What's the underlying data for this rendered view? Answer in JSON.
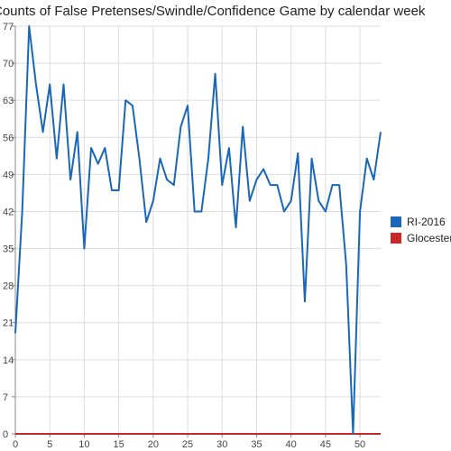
{
  "chart_data": {
    "type": "line",
    "title": "Counts of False Pretenses/Swindle/Confidence Game by calendar week",
    "xlabel": "",
    "ylabel": "",
    "xlim": [
      0,
      53
    ],
    "ylim": [
      0,
      77
    ],
    "x_ticks": [
      0,
      5,
      10,
      15,
      20,
      25,
      30,
      35,
      40,
      45,
      50
    ],
    "y_ticks": [
      0,
      7,
      14,
      21,
      28,
      35,
      42,
      49,
      56,
      63,
      70,
      77
    ],
    "grid": true,
    "legend_position": "right",
    "x": [
      0,
      1,
      2,
      3,
      4,
      5,
      6,
      7,
      8,
      9,
      10,
      11,
      12,
      13,
      14,
      15,
      16,
      17,
      18,
      19,
      20,
      21,
      22,
      23,
      24,
      25,
      26,
      27,
      28,
      29,
      30,
      31,
      32,
      33,
      34,
      35,
      36,
      37,
      38,
      39,
      40,
      41,
      42,
      43,
      44,
      45,
      46,
      47,
      48,
      49,
      50,
      51,
      52,
      53
    ],
    "series": [
      {
        "name": "RI-2016",
        "color": "#1a66b8",
        "values": [
          19,
          42,
          77,
          66,
          57,
          66,
          52,
          66,
          48,
          57,
          35,
          54,
          51,
          54,
          46,
          46,
          63,
          62,
          52,
          40,
          44,
          52,
          48,
          47,
          58,
          62,
          42,
          42,
          52,
          68,
          47,
          54,
          39,
          58,
          44,
          48,
          50,
          47,
          47,
          42,
          44,
          53,
          25,
          52,
          44,
          42,
          47,
          47,
          32,
          0,
          42,
          52,
          48,
          57
        ]
      },
      {
        "name": "Glocester",
        "color": "#c62828",
        "values": [
          0,
          0,
          0,
          0,
          0,
          0,
          0,
          0,
          0,
          0,
          0,
          0,
          0,
          0,
          0,
          0,
          0,
          0,
          0,
          0,
          0,
          0,
          0,
          0,
          0,
          0,
          0,
          0,
          0,
          0,
          0,
          0,
          0,
          0,
          0,
          0,
          0,
          0,
          0,
          0,
          0,
          0,
          0,
          0,
          0,
          0,
          0,
          0,
          0,
          0,
          0,
          0,
          0,
          0
        ]
      }
    ]
  }
}
